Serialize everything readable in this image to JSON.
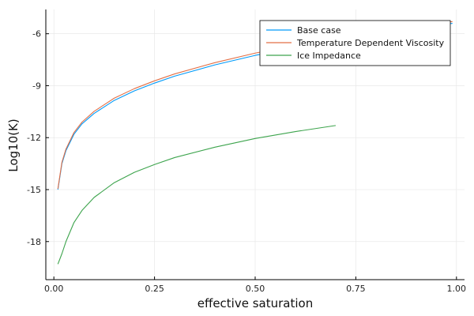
{
  "chart_data": {
    "type": "line",
    "title": "",
    "xlabel": "effective saturation",
    "ylabel": "Log10(K)",
    "xlim": [
      -0.02,
      1.02
    ],
    "ylim": [
      -20.2,
      -4.6
    ],
    "xticks": [
      0.0,
      0.25,
      0.5,
      0.75,
      1.0
    ],
    "xtick_labels": [
      "0.00",
      "0.25",
      "0.50",
      "0.75",
      "1.00"
    ],
    "yticks": [
      -18,
      -15,
      -12,
      -9,
      -6
    ],
    "ytick_labels": [
      "-18",
      "-15",
      "-12",
      "-9",
      "-6"
    ],
    "grid": true,
    "legend_position": "top-right",
    "series": [
      {
        "name": "Base case",
        "color": "#009af9",
        "x": [
          0.01,
          0.02,
          0.03,
          0.05,
          0.07,
          0.1,
          0.15,
          0.2,
          0.25,
          0.3,
          0.4,
          0.5,
          0.6,
          0.7,
          0.8,
          0.9,
          0.99
        ],
        "y": [
          -15.0,
          -13.5,
          -12.75,
          -11.8,
          -11.2,
          -10.6,
          -9.85,
          -9.3,
          -8.85,
          -8.45,
          -7.8,
          -7.25,
          -6.8,
          -6.38,
          -6.0,
          -5.67,
          -5.4
        ]
      },
      {
        "name": "Temperature Dependent Viscosity",
        "color": "#e26f46",
        "x": [
          0.01,
          0.02,
          0.03,
          0.05,
          0.07,
          0.1,
          0.15,
          0.2,
          0.25,
          0.3,
          0.4,
          0.5,
          0.6,
          0.7,
          0.8,
          0.9,
          0.99
        ],
        "y": [
          -14.95,
          -13.42,
          -12.66,
          -11.7,
          -11.1,
          -10.48,
          -9.72,
          -9.17,
          -8.72,
          -8.32,
          -7.67,
          -7.12,
          -6.67,
          -6.26,
          -5.9,
          -5.57,
          -5.3
        ]
      },
      {
        "name": "Ice Impedance",
        "color": "#3da44d",
        "x": [
          0.01,
          0.02,
          0.03,
          0.05,
          0.07,
          0.1,
          0.15,
          0.2,
          0.25,
          0.3,
          0.4,
          0.5,
          0.6,
          0.7
        ],
        "y": [
          -19.3,
          -18.7,
          -18.0,
          -16.9,
          -16.2,
          -15.45,
          -14.6,
          -14.0,
          -13.55,
          -13.15,
          -12.55,
          -12.05,
          -11.65,
          -11.3
        ]
      }
    ]
  }
}
